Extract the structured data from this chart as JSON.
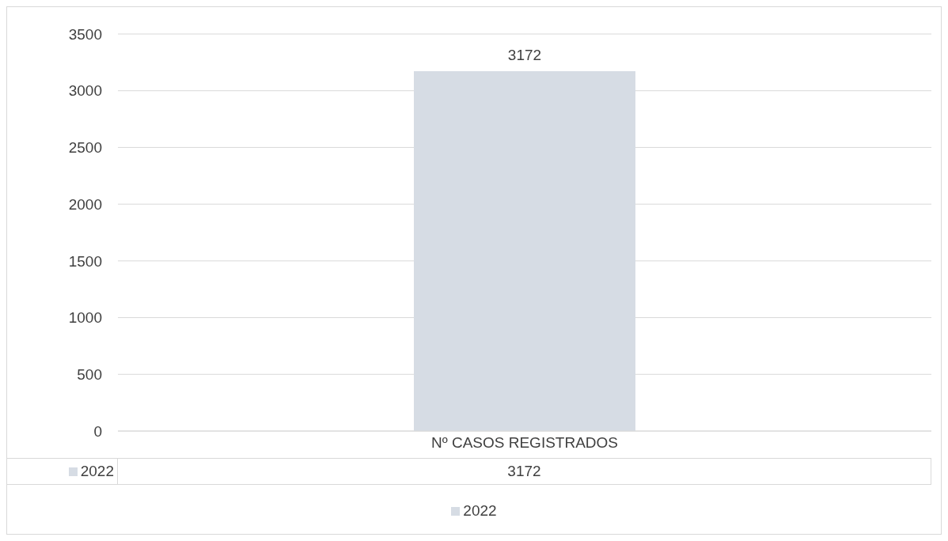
{
  "chart_data": {
    "type": "bar",
    "categories": [
      "Nº CASOS REGISTRADOS"
    ],
    "series": [
      {
        "name": "2022",
        "color": "#d6dce4",
        "values": [
          3172
        ],
        "value_labels": [
          "3172"
        ]
      }
    ],
    "ylim": [
      0,
      3500
    ],
    "yticks": [
      0,
      500,
      1000,
      1500,
      2000,
      2500,
      3000,
      3500
    ],
    "grid": "y",
    "legend": "bottom"
  }
}
